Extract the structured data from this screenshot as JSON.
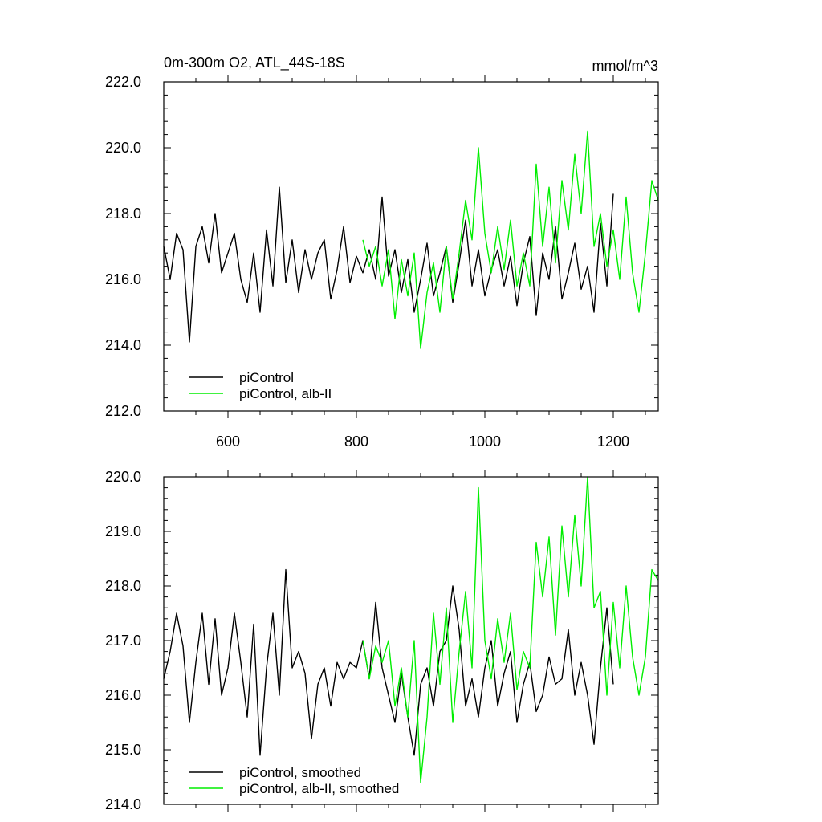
{
  "chart_data": [
    {
      "type": "line",
      "title": "0m-300m O2, ATL_44S-18S",
      "units": "mmol/m^3",
      "xlim": [
        500,
        1270
      ],
      "ylim": [
        212.0,
        222.0
      ],
      "x_ticks": [
        600,
        800,
        1000,
        1200
      ],
      "x_tick_labels": [
        "600",
        "800",
        "1000",
        "1200"
      ],
      "y_ticks": [
        212.0,
        214.0,
        216.0,
        218.0,
        220.0,
        222.0
      ],
      "y_tick_labels": [
        "212.0",
        "214.0",
        "216.0",
        "218.0",
        "220.0",
        "222.0"
      ],
      "legend": [
        "piControl",
        "piControl, alb-II"
      ],
      "legend_position": "lower-left",
      "series": [
        {
          "name": "piControl",
          "color": "#000000",
          "x": [
            500,
            510,
            520,
            530,
            540,
            550,
            560,
            570,
            580,
            590,
            600,
            610,
            620,
            630,
            640,
            650,
            660,
            670,
            680,
            690,
            700,
            710,
            720,
            730,
            740,
            750,
            760,
            770,
            780,
            790,
            800,
            810,
            820,
            830,
            840,
            850,
            860,
            870,
            880,
            890,
            900,
            910,
            920,
            930,
            940,
            950,
            960,
            970,
            980,
            990,
            1000,
            1010,
            1020,
            1030,
            1040,
            1050,
            1060,
            1070,
            1080,
            1090,
            1100,
            1110,
            1120,
            1130,
            1140,
            1150,
            1160,
            1170,
            1180,
            1190,
            1200
          ],
          "values": [
            217.0,
            216.0,
            217.4,
            216.9,
            214.1,
            217.0,
            217.6,
            216.5,
            218.0,
            216.2,
            216.8,
            217.4,
            216.0,
            215.3,
            216.8,
            215.0,
            217.5,
            215.8,
            218.8,
            215.9,
            217.2,
            215.6,
            216.9,
            216.0,
            216.8,
            217.2,
            215.4,
            216.3,
            217.6,
            215.9,
            216.7,
            216.2,
            216.9,
            216.0,
            218.5,
            216.1,
            216.9,
            215.6,
            216.6,
            215.0,
            216.0,
            217.1,
            215.5,
            216.2,
            217.0,
            215.3,
            216.5,
            217.8,
            215.8,
            216.9,
            215.5,
            216.3,
            216.9,
            215.8,
            216.7,
            215.2,
            216.5,
            217.3,
            214.9,
            216.8,
            216.0,
            217.6,
            215.4,
            216.2,
            217.1,
            215.7,
            216.4,
            215.0,
            217.7,
            215.8,
            218.6
          ]
        },
        {
          "name": "piControl, alb-II",
          "color": "#00ee00",
          "x": [
            810,
            820,
            830,
            840,
            850,
            860,
            870,
            880,
            890,
            900,
            910,
            920,
            930,
            940,
            950,
            960,
            970,
            980,
            990,
            1000,
            1010,
            1020,
            1030,
            1040,
            1050,
            1060,
            1070,
            1080,
            1090,
            1100,
            1110,
            1120,
            1130,
            1140,
            1150,
            1160,
            1170,
            1180,
            1190,
            1200,
            1210,
            1220,
            1230,
            1240,
            1250,
            1260,
            1270
          ],
          "values": [
            217.2,
            216.4,
            217.0,
            215.8,
            216.9,
            214.8,
            216.6,
            215.5,
            216.8,
            213.9,
            215.6,
            216.5,
            215.0,
            217.0,
            215.4,
            216.8,
            218.4,
            217.2,
            220.0,
            217.4,
            216.2,
            217.6,
            216.3,
            217.8,
            215.8,
            216.8,
            215.8,
            219.5,
            217.0,
            218.8,
            216.5,
            219.0,
            217.5,
            219.8,
            218.0,
            220.5,
            217.0,
            218.0,
            216.4,
            217.5,
            216.0,
            218.5,
            216.2,
            215.0,
            216.8,
            219.0,
            218.4
          ]
        }
      ]
    },
    {
      "type": "line",
      "xlim": [
        500,
        1270
      ],
      "ylim": [
        214.0,
        220.0
      ],
      "x_ticks": [
        600,
        800,
        1000,
        1200
      ],
      "y_ticks": [
        214.0,
        215.0,
        216.0,
        217.0,
        218.0,
        219.0,
        220.0
      ],
      "y_tick_labels": [
        "214.0",
        "215.0",
        "216.0",
        "217.0",
        "218.0",
        "219.0",
        "220.0"
      ],
      "legend": [
        "piControl, smoothed",
        "piControl, alb-II, smoothed"
      ],
      "legend_position": "lower-left",
      "series": [
        {
          "name": "piControl, smoothed",
          "color": "#000000",
          "x": [
            500,
            510,
            520,
            530,
            540,
            550,
            560,
            570,
            580,
            590,
            600,
            610,
            620,
            630,
            640,
            650,
            660,
            670,
            680,
            690,
            700,
            710,
            720,
            730,
            740,
            750,
            760,
            770,
            780,
            790,
            800,
            810,
            820,
            830,
            840,
            850,
            860,
            870,
            880,
            890,
            900,
            910,
            920,
            930,
            940,
            950,
            960,
            970,
            980,
            990,
            1000,
            1010,
            1020,
            1030,
            1040,
            1050,
            1060,
            1070,
            1080,
            1090,
            1100,
            1110,
            1120,
            1130,
            1140,
            1150,
            1160,
            1170,
            1180,
            1190,
            1200
          ],
          "values": [
            216.3,
            216.8,
            217.5,
            216.9,
            215.5,
            216.6,
            217.5,
            216.2,
            217.4,
            216.0,
            216.5,
            217.5,
            216.6,
            215.6,
            217.3,
            214.9,
            216.5,
            217.5,
            216.0,
            218.3,
            216.5,
            216.8,
            216.4,
            215.2,
            216.2,
            216.5,
            215.8,
            216.6,
            216.3,
            216.6,
            216.5,
            217.0,
            216.3,
            217.7,
            216.5,
            216.0,
            215.5,
            216.4,
            215.6,
            214.9,
            216.2,
            216.5,
            215.8,
            216.8,
            217.0,
            218.0,
            217.2,
            215.8,
            216.3,
            215.6,
            216.5,
            217.0,
            215.8,
            216.4,
            216.8,
            215.5,
            216.2,
            216.6,
            215.7,
            216.0,
            216.7,
            216.2,
            216.3,
            217.2,
            216.0,
            216.6,
            216.0,
            215.1,
            216.5,
            217.6,
            216.2
          ]
        },
        {
          "name": "piControl, alb-II, smoothed",
          "color": "#00ee00",
          "x": [
            810,
            820,
            830,
            840,
            850,
            860,
            870,
            880,
            890,
            900,
            910,
            920,
            930,
            940,
            950,
            960,
            970,
            980,
            990,
            1000,
            1010,
            1020,
            1030,
            1040,
            1050,
            1060,
            1070,
            1080,
            1090,
            1100,
            1110,
            1120,
            1130,
            1140,
            1150,
            1160,
            1170,
            1180,
            1190,
            1200,
            1210,
            1220,
            1230,
            1240,
            1250,
            1260,
            1270
          ],
          "values": [
            217.0,
            216.3,
            216.9,
            216.6,
            217.0,
            215.8,
            216.5,
            215.6,
            217.0,
            214.4,
            215.6,
            217.5,
            216.2,
            217.6,
            215.5,
            216.8,
            217.9,
            216.5,
            219.8,
            217.0,
            216.3,
            217.4,
            216.6,
            217.5,
            216.1,
            216.8,
            216.5,
            218.8,
            217.8,
            218.9,
            217.1,
            219.1,
            217.8,
            219.3,
            218.0,
            220.0,
            217.6,
            217.9,
            216.0,
            217.7,
            216.5,
            218.0,
            216.7,
            216.0,
            216.7,
            218.3,
            218.1
          ]
        }
      ]
    }
  ]
}
